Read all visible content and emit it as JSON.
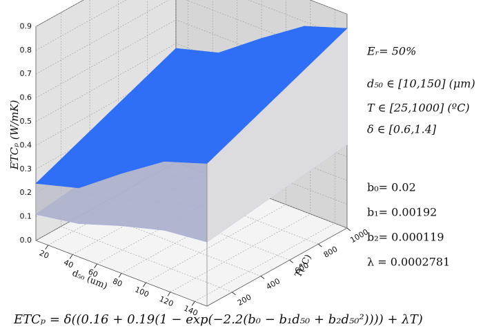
{
  "chart_data": {
    "type": "surface3d",
    "zlabel": "ETCₚ (W/mK)",
    "xlabel": "d₅₀ (um)",
    "ylabel": "T(°C)",
    "x": [
      10,
      45,
      80,
      115,
      150
    ],
    "y": [
      25,
      268.75,
      512.5,
      756.25,
      1000
    ],
    "xlim": [
      10,
      150
    ],
    "ylim": [
      25,
      1000
    ],
    "zlim": [
      0,
      0.9
    ],
    "xticks": [
      20,
      40,
      60,
      80,
      100,
      120,
      140
    ],
    "yticks": [
      200,
      400,
      600,
      800,
      1000
    ],
    "zticks": [
      {
        "value": 0,
        "label": "0.0"
      },
      0.1,
      0.2,
      0.3,
      0.4,
      0.5,
      0.6,
      0.7,
      0.8,
      0.9
    ],
    "grid": true,
    "surfaces": [
      {
        "color": "#97a3e4",
        "z": [
          [
            0.11,
            0.14,
            0.2,
            0.25,
            0.27
          ],
          [
            0.13,
            0.16,
            0.22,
            0.27,
            0.29
          ],
          [
            0.15,
            0.18,
            0.24,
            0.29,
            0.31
          ],
          [
            0.17,
            0.2,
            0.26,
            0.31,
            0.33
          ],
          [
            0.19,
            0.22,
            0.28,
            0.33,
            0.35
          ]
        ]
      },
      {
        "color": "#2f6ef6",
        "z": [
          [
            0.24,
            0.29,
            0.42,
            0.54,
            0.6
          ],
          [
            0.3,
            0.35,
            0.48,
            0.6,
            0.66
          ],
          [
            0.36,
            0.41,
            0.54,
            0.66,
            0.72
          ],
          [
            0.42,
            0.47,
            0.6,
            0.72,
            0.78
          ],
          [
            0.48,
            0.53,
            0.66,
            0.78,
            0.84
          ]
        ]
      }
    ],
    "annotations": [
      "Eᵣ= 50%",
      "d₅₀ ∈ [10,150]  (μm)",
      "T ∈ [25,1000]  (ºC)",
      "δ ∈ [0.6,1.4]",
      "b₀= 0.02",
      "b₁= 0.00192",
      "b₂= 0.000119",
      "λ = 0.0002781"
    ],
    "formula": "ETCₚ = δ((0.16 + 0.19(1 − exp(−2.2(b₀ − b₁d₅₀ + b₂d₅₀²)))) + λT)"
  }
}
